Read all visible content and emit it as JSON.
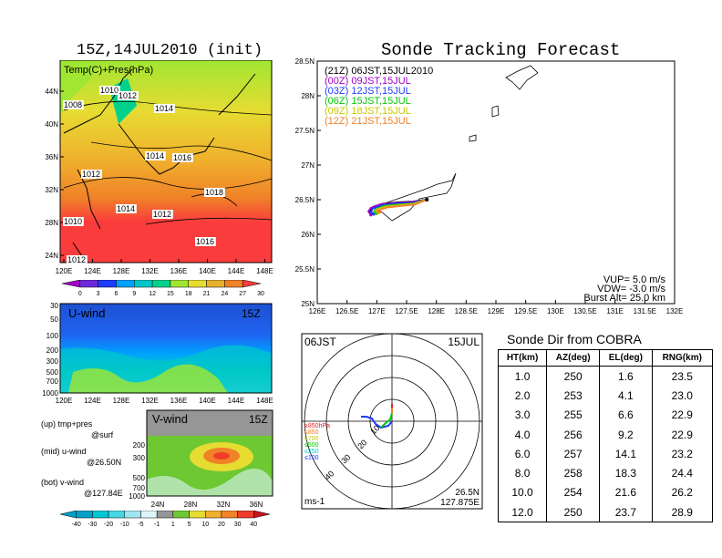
{
  "left_panel": {
    "title": "15Z,14JUL2010 (init)",
    "map_label": "Temp(C)+Pres(hPa)",
    "lat_ticks": [
      "44N",
      "40N",
      "36N",
      "32N",
      "28N",
      "24N"
    ],
    "lon_ticks": [
      "120E",
      "124E",
      "128E",
      "132E",
      "136E",
      "140E",
      "144E",
      "148E"
    ],
    "isobars": [
      "1010",
      "1012",
      "1008",
      "1014",
      "1012",
      "1014",
      "1016",
      "1012",
      "1018",
      "1014",
      "1016",
      "1010",
      "1012"
    ],
    "colorbar_labels": [
      "0",
      "3",
      "6",
      "9",
      "12",
      "15",
      "18",
      "21",
      "24",
      "27",
      "30"
    ],
    "colorbar_colors": [
      "#a000c8",
      "#6e28dc",
      "#1e3cff",
      "#00a0ff",
      "#00c8c8",
      "#00d28c",
      "#a0e632",
      "#e6dc32",
      "#e6af2d",
      "#f08228",
      "#fa3c3c"
    ]
  },
  "u_panel": {
    "label": "U-wind",
    "time": "15Z",
    "pres_ticks": [
      "30",
      "50",
      "100",
      "200",
      "300",
      "500",
      "700",
      "1000"
    ],
    "lon_ticks": [
      "120E",
      "124E",
      "128E",
      "132E",
      "136E",
      "140E",
      "144E",
      "148E"
    ]
  },
  "annotations": {
    "up_line1": "(up) tmp+pres",
    "up_line2": "@surf",
    "mid_line1": "(mid) u-wind",
    "mid_line2": "@26.50N",
    "bot_line1": "(bot) v-wind",
    "bot_line2": "@127.84E"
  },
  "v_panel": {
    "label": "V-wind",
    "time": "15Z",
    "pres_ticks": [
      "200",
      "300",
      "500",
      "700",
      "1000"
    ],
    "lat_ticks": [
      "24N",
      "28N",
      "32N",
      "36N"
    ],
    "colorbar_labels": [
      "-40",
      "-30",
      "-20",
      "-10",
      "-5",
      "-1",
      "1",
      "5",
      "10",
      "20",
      "30",
      "40"
    ],
    "colorbar_colors": [
      "#00a0c8",
      "#00c8d2",
      "#46d7e6",
      "#a0e6f0",
      "#dcf5fa",
      "#969696",
      "#6ec832",
      "#e6dc32",
      "#f0af2d",
      "#f08228",
      "#f03c28",
      "#c8141e"
    ]
  },
  "tracking": {
    "title": "Sonde Tracking Forecast",
    "legend": [
      {
        "text": "(21Z) 06JST,15JUL2010",
        "color": "#000000"
      },
      {
        "text": "(00Z) 09JST,15JUL",
        "color": "#a000c8"
      },
      {
        "text": "(03Z) 12JST,15JUL",
        "color": "#1e3cff"
      },
      {
        "text": "(06Z) 15JST,15JUL",
        "color": "#00c800"
      },
      {
        "text": "(09Z) 18JST,15JUL",
        "color": "#c8c800"
      },
      {
        "text": "(12Z) 21JST,15JUL",
        "color": "#f08228"
      }
    ],
    "lat_ticks": [
      "28.5N",
      "28N",
      "27.5N",
      "27N",
      "26.5N",
      "26N",
      "25.5N",
      "25N"
    ],
    "lon_ticks": [
      "126E",
      "126.5E",
      "127E",
      "127.5E",
      "128E",
      "128.5E",
      "129E",
      "129.5E",
      "130E",
      "130.5E",
      "131E",
      "131.5E",
      "132E"
    ],
    "vup": "VUP= 5.0 m/s",
    "vdw": "VDW= -3.0 m/s",
    "burst": "Burst Alt= 25.0 km"
  },
  "polar": {
    "time_left": "06JST",
    "date_right": "15JUL",
    "ring_labels": [
      "10",
      "20",
      "30",
      "40"
    ],
    "levels": [
      {
        "text": "≥850hPa",
        "color": "#e61e1e"
      },
      {
        "text": "≤850",
        "color": "#f08228"
      },
      {
        "text": "≤700",
        "color": "#c8c800"
      },
      {
        "text": "≤500",
        "color": "#00c800"
      },
      {
        "text": "≤250",
        "color": "#00c8c8"
      },
      {
        "text": "≤100",
        "color": "#1e3cff"
      }
    ],
    "units": "ms-1",
    "lat": "26.5N",
    "lon": "127.875E"
  },
  "sonde_table": {
    "title": "Sonde Dir from COBRA",
    "headers": [
      "HT(km)",
      "AZ(deg)",
      "EL(deg)",
      "RNG(km)"
    ],
    "rows": [
      [
        "1.0",
        "250",
        "1.6",
        "23.5"
      ],
      [
        "2.0",
        "253",
        "4.1",
        "23.0"
      ],
      [
        "3.0",
        "255",
        "6.6",
        "22.9"
      ],
      [
        "4.0",
        "256",
        "9.2",
        "22.9"
      ],
      [
        "6.0",
        "257",
        "14.1",
        "23.2"
      ],
      [
        "8.0",
        "258",
        "18.3",
        "24.4"
      ],
      [
        "10.0",
        "254",
        "21.6",
        "26.2"
      ],
      [
        "12.0",
        "250",
        "23.7",
        "28.9"
      ]
    ]
  },
  "chart_data": [
    {
      "type": "line",
      "title": "Sonde Tracking Forecast",
      "xlim": [
        126,
        132
      ],
      "ylim": [
        25,
        28.5
      ],
      "series": [
        {
          "name": "(21Z) 06JST,15JUL2010",
          "x": [
            127.84,
            127.6,
            127.35,
            127.1,
            126.95,
            126.88,
            126.92
          ],
          "y": [
            26.5,
            26.47,
            26.46,
            26.44,
            26.4,
            26.35,
            26.3
          ]
        },
        {
          "name": "(00Z) 09JST,15JUL",
          "x": [
            127.84,
            127.55,
            127.3,
            127.05,
            126.9,
            126.86,
            126.9
          ],
          "y": [
            26.5,
            26.46,
            26.45,
            26.43,
            26.38,
            26.33,
            26.28
          ]
        },
        {
          "name": "(03Z) 12JST,15JUL",
          "x": [
            127.84,
            127.58,
            127.32,
            127.08,
            126.93,
            126.9,
            126.95
          ],
          "y": [
            26.5,
            26.45,
            26.44,
            26.42,
            26.37,
            26.32,
            26.29
          ]
        },
        {
          "name": "(06Z) 15JST,15JUL",
          "x": [
            127.84,
            127.6,
            127.35,
            127.12,
            126.98,
            126.95,
            127.0
          ],
          "y": [
            26.5,
            26.44,
            26.43,
            26.41,
            26.36,
            26.32,
            26.3
          ]
        },
        {
          "name": "(09Z) 18JST,15JUL",
          "x": [
            127.84,
            127.62,
            127.38,
            127.15,
            127.0,
            126.98,
            127.03
          ],
          "y": [
            26.5,
            26.44,
            26.42,
            26.4,
            26.36,
            26.33,
            26.31
          ]
        },
        {
          "name": "(12Z) 21JST,15JUL",
          "x": [
            127.84,
            127.64,
            127.4,
            127.18,
            127.03,
            127.0,
            127.05
          ],
          "y": [
            26.5,
            26.43,
            26.41,
            26.39,
            26.35,
            26.33,
            26.32
          ]
        }
      ]
    },
    {
      "type": "table",
      "title": "Sonde Dir from COBRA",
      "columns": [
        "HT(km)",
        "AZ(deg)",
        "EL(deg)",
        "RNG(km)"
      ],
      "rows": [
        [
          1.0,
          250,
          1.6,
          23.5
        ],
        [
          2.0,
          253,
          4.1,
          23.0
        ],
        [
          3.0,
          255,
          6.6,
          22.9
        ],
        [
          4.0,
          256,
          9.2,
          22.9
        ],
        [
          6.0,
          257,
          14.1,
          23.2
        ],
        [
          8.0,
          258,
          18.3,
          24.4
        ],
        [
          10.0,
          254,
          21.6,
          26.2
        ],
        [
          12.0,
          250,
          23.7,
          28.9
        ]
      ]
    }
  ]
}
